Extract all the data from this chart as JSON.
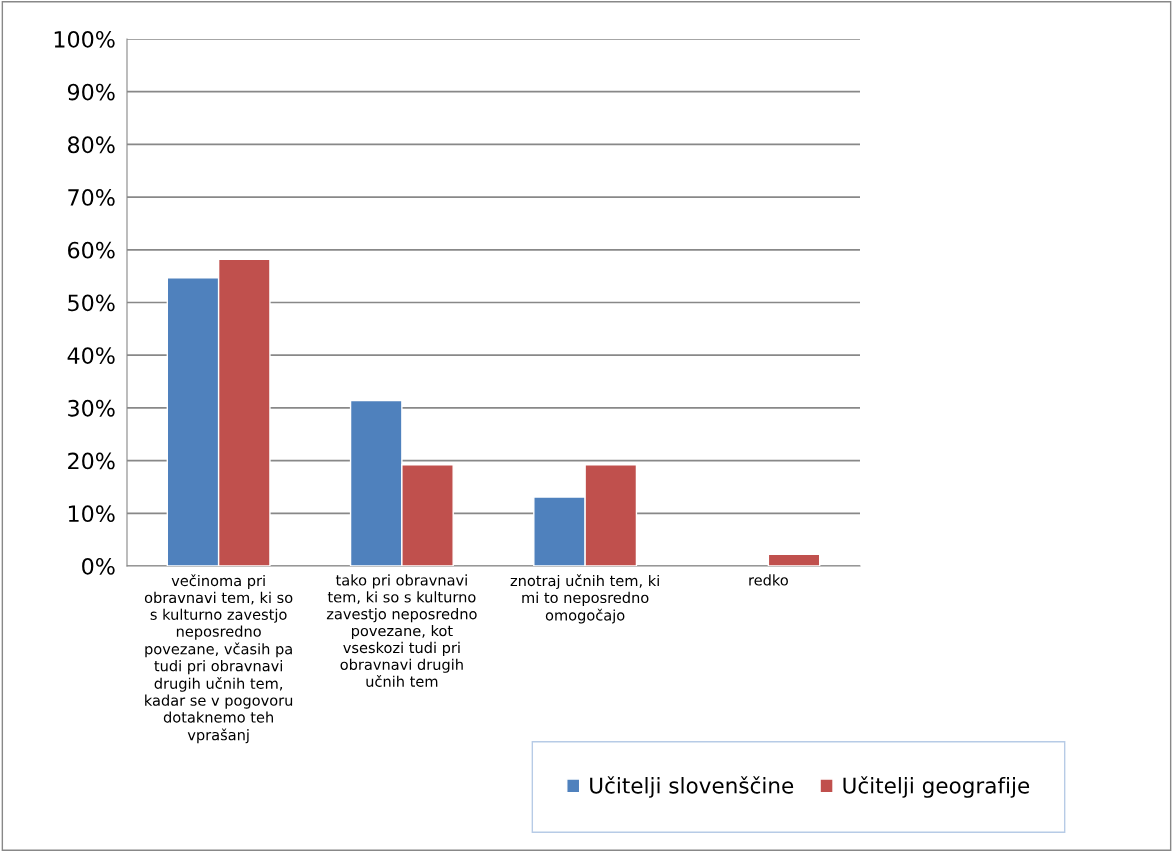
{
  "chart_data": {
    "type": "bar",
    "categories": [
      "večinoma pri\nobravnavi tem, ki so\ns kulturno zavestjo\nneposredno\npovezane, včasih pa\ntudi pri obravnavi\ndrugih učnih tem,\nkadar se v pogovoru\ndotaknemo teh\nvprašanj",
      "tako pri obravnavi\ntem, ki so s kulturno\nzavestjo neposredno\npovezane, kot\nvseskozi tudi pri\nobravnavi drugih\nučnih tem",
      "znotraj učnih tem, ki\nmi to neposredno\nomogočajo",
      "redko"
    ],
    "series": [
      {
        "name": "Učitelji slovenščine",
        "color": "#4f81bd",
        "values": [
          54.7,
          31.4,
          13.1,
          null
        ]
      },
      {
        "name": "Učitelji geografije",
        "color": "#c0504d",
        "values": [
          58.2,
          19.2,
          19.2,
          2.2
        ]
      }
    ],
    "ylim": [
      0,
      100
    ],
    "yticks": [
      {
        "value": 0,
        "label": "0%"
      },
      {
        "value": 10,
        "label": "10%"
      },
      {
        "value": 20,
        "label": "20%"
      },
      {
        "value": 30,
        "label": "30%"
      },
      {
        "value": 40,
        "label": "40%"
      },
      {
        "value": 50,
        "label": "50%"
      },
      {
        "value": 60,
        "label": "60%"
      },
      {
        "value": 70,
        "label": "70%"
      },
      {
        "value": 80,
        "label": "80%"
      },
      {
        "value": 90,
        "label": "90%"
      },
      {
        "value": 100,
        "label": "100%"
      }
    ],
    "grid": "y",
    "legend": "bottom right"
  }
}
